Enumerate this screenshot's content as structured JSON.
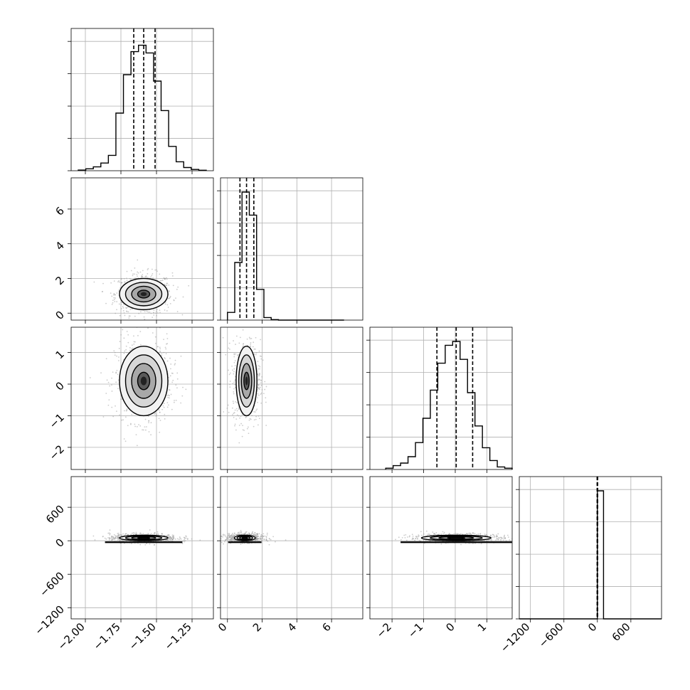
{
  "chart_data": {
    "type": "corner",
    "grid": true,
    "parameters": [
      {
        "index": 0,
        "range": [
          -2.1,
          -1.1
        ],
        "ticks": [
          -2.0,
          -1.75,
          -1.5,
          -1.25
        ],
        "tick_labels": [
          "−2.00",
          "−1.75",
          "−1.50",
          "−1.25"
        ]
      },
      {
        "index": 1,
        "range": [
          -0.4,
          7.8
        ],
        "ticks": [
          0,
          2,
          4,
          6
        ],
        "tick_labels": [
          "0",
          "2",
          "4",
          "6"
        ]
      },
      {
        "index": 2,
        "range": [
          -2.7,
          1.8
        ],
        "ticks": [
          -2,
          -1,
          0,
          1
        ],
        "tick_labels": [
          "−2",
          "−1",
          "0",
          "1"
        ]
      },
      {
        "index": 3,
        "range": [
          -1400,
          1150
        ],
        "ticks": [
          -1200,
          -600,
          0,
          600
        ],
        "tick_labels": [
          "−1200",
          "−600",
          "0",
          "600"
        ]
      }
    ],
    "histograms": [
      {
        "param": 0,
        "quantiles": [
          -1.66,
          -1.59,
          -1.51
        ],
        "peak": 1.0,
        "values": [
          0.005,
          0.015,
          0.03,
          0.06,
          0.12,
          0.45,
          0.75,
          0.93,
          0.98,
          0.92,
          0.7,
          0.47,
          0.19,
          0.07,
          0.025,
          0.01,
          0.004
        ]
      },
      {
        "param": 1,
        "quantiles": [
          0.72,
          1.1,
          1.52
        ],
        "peak": 1.0,
        "values": [
          0.06,
          0.45,
          1.0,
          0.82,
          0.24,
          0.02,
          0.004,
          0.0,
          0.0,
          0.0,
          0.0,
          0.0,
          0.0,
          0.0,
          0.0,
          0.0
        ]
      },
      {
        "param": 2,
        "quantiles": [
          -0.58,
          0.03,
          0.55
        ],
        "peak": 1.0,
        "values": [
          0.01,
          0.03,
          0.05,
          0.1,
          0.21,
          0.4,
          0.62,
          0.83,
          0.97,
          1.0,
          0.86,
          0.6,
          0.34,
          0.17,
          0.07,
          0.02,
          0.01
        ]
      },
      {
        "param": 3,
        "quantiles": [
          -5,
          0,
          5
        ],
        "peak": 1.0,
        "bins": [
          {
            "x0": 0,
            "x1": 110,
            "value": 1.0
          }
        ]
      }
    ],
    "pairs": [
      {
        "x": 0,
        "y": 1,
        "center": [
          -1.59,
          1.1
        ],
        "sd": [
          0.085,
          0.45
        ],
        "scatter_sd": [
          0.1,
          0.6
        ]
      },
      {
        "x": 0,
        "y": 2,
        "center": [
          -1.59,
          0.1
        ],
        "sd": [
          0.085,
          0.55
        ],
        "scatter_sd": [
          0.1,
          0.65
        ]
      },
      {
        "x": 1,
        "y": 2,
        "center": [
          1.1,
          0.1
        ],
        "sd": [
          0.3,
          0.55
        ],
        "scatter_sd": [
          0.4,
          0.65
        ]
      },
      {
        "x": 0,
        "y": 3,
        "center": [
          -1.59,
          50
        ],
        "sd": [
          0.085,
          25
        ],
        "scatter_sd": [
          0.12,
          40
        ]
      },
      {
        "x": 1,
        "y": 3,
        "center": [
          1.0,
          50
        ],
        "sd": [
          0.3,
          25
        ],
        "scatter_sd": [
          0.55,
          40
        ]
      },
      {
        "x": 2,
        "y": 3,
        "center": [
          0.03,
          50
        ],
        "sd": [
          0.55,
          25
        ],
        "scatter_sd": [
          0.75,
          40
        ]
      }
    ]
  },
  "colors": {
    "line": "#000000",
    "grid": "#b0b0b0",
    "scatter": "#9a9a9a"
  }
}
